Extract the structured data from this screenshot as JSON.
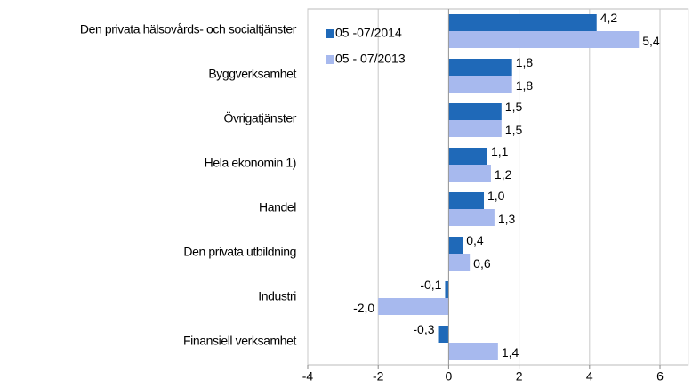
{
  "chart_data": {
    "type": "bar",
    "orientation": "horizontal",
    "categories": [
      "Den privata hälsovårds- och socialtjänster",
      "Byggverksamhet",
      "Övrigatjänster",
      "Hela ekonomin 1)",
      "Handel",
      "Den privata utbildning",
      "Industri",
      "Finansiell verksamhet"
    ],
    "series": [
      {
        "name": "05 -07/2014",
        "color": "#1f69b8",
        "values": [
          4.2,
          1.8,
          1.5,
          1.1,
          1.0,
          0.4,
          -0.1,
          -0.3
        ],
        "value_labels": [
          "4,2",
          "1,8",
          "1,5",
          "1,1",
          "1,0",
          "0,4",
          "-0,1",
          "-0,3"
        ]
      },
      {
        "name": "05 - 07/2013",
        "color": "#a7b9ee",
        "values": [
          5.4,
          1.8,
          1.5,
          1.2,
          1.3,
          0.6,
          -2.0,
          1.4
        ],
        "value_labels": [
          "5,4",
          "1,8",
          "1,5",
          "1,2",
          "1,3",
          "0,6",
          "-2,0",
          "1,4"
        ]
      }
    ],
    "xlim": [
      -4,
      6.8
    ],
    "xticks": [
      -4,
      -2,
      0,
      2,
      4,
      6
    ],
    "grid": true,
    "legend": "upper left"
  }
}
